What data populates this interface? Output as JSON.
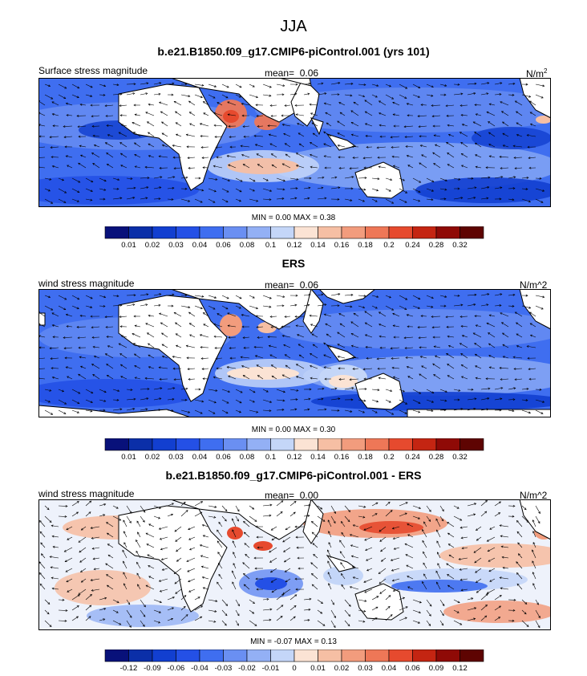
{
  "figure": {
    "title": "JJA"
  },
  "panels": [
    {
      "title": "b.e21.B1850.f09_g17.CMIP6-piControl.001 (yrs 101)",
      "left_label": "Surface stress magnitude",
      "mean_label": "mean=",
      "mean_value": "0.06",
      "units": "N/m",
      "units_sup": "2",
      "stats": "MIN =   0.00 MAX =   0.38",
      "colorbar": {
        "ticks": [
          "0.01",
          "0.02",
          "0.03",
          "0.04",
          "0.06",
          "0.08",
          "0.1",
          "0.12",
          "0.14",
          "0.16",
          "0.18",
          "0.2",
          "0.24",
          "0.28",
          "0.32"
        ],
        "colors": [
          "#08117a",
          "#0b2fa8",
          "#123fd0",
          "#2450e6",
          "#3f6ef0",
          "#6a8ff2",
          "#93b0f5",
          "#c4d6f8",
          "#fbe3d4",
          "#f6bfa4",
          "#f29c7d",
          "#ee7757",
          "#e64a2e",
          "#c42512",
          "#8f0a06",
          "#5e0402"
        ]
      }
    },
    {
      "title": "ERS",
      "left_label": "wind stress magnitude",
      "mean_label": "mean=",
      "mean_value": "0.06",
      "units": "N/m^2",
      "units_sup": "",
      "stats": "MIN =   0.00 MAX =   0.30",
      "colorbar": {
        "ticks": [
          "0.01",
          "0.02",
          "0.03",
          "0.04",
          "0.06",
          "0.08",
          "0.1",
          "0.12",
          "0.14",
          "0.16",
          "0.18",
          "0.2",
          "0.24",
          "0.28",
          "0.32"
        ],
        "colors": [
          "#08117a",
          "#0b2fa8",
          "#123fd0",
          "#2450e6",
          "#3f6ef0",
          "#6a8ff2",
          "#93b0f5",
          "#c4d6f8",
          "#fbe3d4",
          "#f6bfa4",
          "#f29c7d",
          "#ee7757",
          "#e64a2e",
          "#c42512",
          "#8f0a06",
          "#5e0402"
        ]
      }
    },
    {
      "title": "b.e21.B1850.f09_g17.CMIP6-piControl.001 - ERS",
      "left_label": "wind stress magnitude",
      "mean_label": "mean=",
      "mean_value": "0.00",
      "units": "N/m^2",
      "units_sup": "",
      "stats": "MIN =  -0.07 MAX =   0.13",
      "colorbar": {
        "ticks": [
          "-0.12",
          "-0.09",
          "-0.06",
          "-0.04",
          "-0.03",
          "-0.02",
          "-0.01",
          "0",
          "0.01",
          "0.02",
          "0.03",
          "0.04",
          "0.06",
          "0.09",
          "0.12"
        ],
        "colors": [
          "#08117a",
          "#0b2fa8",
          "#123fd0",
          "#2450e6",
          "#3f6ef0",
          "#6a8ff2",
          "#93b0f5",
          "#c4d6f8",
          "#fbe3d4",
          "#f6bfa4",
          "#f29c7d",
          "#ee7757",
          "#e64a2e",
          "#c42512",
          "#8f0a06",
          "#5e0402"
        ]
      }
    }
  ],
  "chart_data": [
    {
      "type": "heatmap",
      "title": "b.e21.B1850.f09_g17.CMIP6-piControl.001 (yrs 101)",
      "season": "JJA",
      "variable": "Surface stress magnitude",
      "units": "N/m2",
      "mean": 0.06,
      "min": 0.0,
      "max": 0.38,
      "levels": [
        0.01,
        0.02,
        0.03,
        0.04,
        0.06,
        0.08,
        0.1,
        0.12,
        0.14,
        0.16,
        0.18,
        0.2,
        0.24,
        0.28,
        0.32
      ],
      "overlay": "wind stress vectors"
    },
    {
      "type": "heatmap",
      "title": "ERS",
      "season": "JJA",
      "variable": "wind stress magnitude",
      "units": "N/m^2",
      "mean": 0.06,
      "min": 0.0,
      "max": 0.3,
      "levels": [
        0.01,
        0.02,
        0.03,
        0.04,
        0.06,
        0.08,
        0.1,
        0.12,
        0.14,
        0.16,
        0.18,
        0.2,
        0.24,
        0.28,
        0.32
      ],
      "overlay": "wind stress vectors"
    },
    {
      "type": "heatmap",
      "title": "b.e21.B1850.f09_g17.CMIP6-piControl.001 - ERS",
      "season": "JJA",
      "variable": "wind stress magnitude",
      "units": "N/m^2",
      "mean": 0.0,
      "min": -0.07,
      "max": 0.13,
      "levels": [
        -0.12,
        -0.09,
        -0.06,
        -0.04,
        -0.03,
        -0.02,
        -0.01,
        0,
        0.01,
        0.02,
        0.03,
        0.04,
        0.06,
        0.09,
        0.12
      ],
      "overlay": "wind stress difference vectors"
    }
  ]
}
